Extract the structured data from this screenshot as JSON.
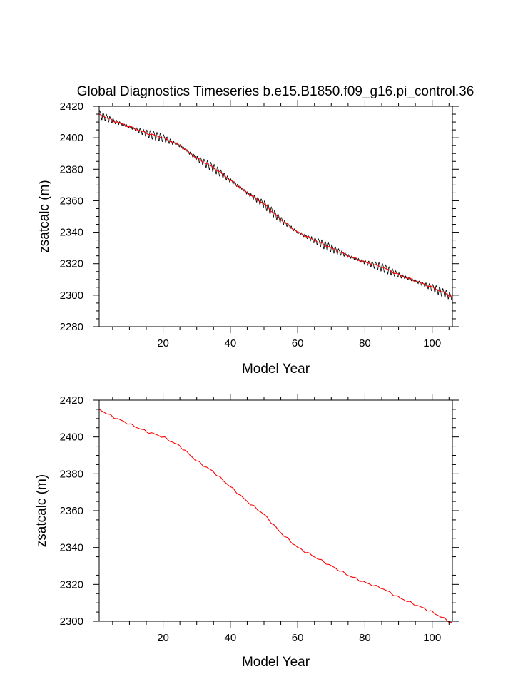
{
  "title": "Global Diagnostics Timeseries b.e15.B1850.f09_g16.pi_control.36",
  "colors": {
    "monthly": "#000000",
    "annual": "#ff0000",
    "frame": "#000000"
  },
  "chart_data": [
    {
      "type": "line",
      "xlabel": "Model Year",
      "ylabel": "zsatcalc (m)",
      "xlim": [
        1,
        106
      ],
      "ylim": [
        2280,
        2420
      ],
      "xticks": [
        20,
        40,
        60,
        80,
        100
      ],
      "yticks": [
        2280,
        2300,
        2320,
        2340,
        2360,
        2380,
        2400,
        2420
      ],
      "grid": false,
      "seasonal_amplitude_m": 2.5,
      "series": [
        {
          "role": "monthly",
          "x": [
            1,
            5,
            10,
            15,
            20,
            25,
            30,
            35,
            40,
            45,
            50,
            55,
            60,
            65,
            70,
            75,
            80,
            85,
            90,
            95,
            100,
            106
          ],
          "values": [
            2415,
            2411,
            2407,
            2403,
            2400,
            2395,
            2387,
            2381,
            2373,
            2365,
            2358,
            2348,
            2340,
            2335,
            2330,
            2325,
            2321,
            2318,
            2313,
            2309,
            2305,
            2299
          ]
        },
        {
          "role": "annual",
          "x": [
            1,
            5,
            10,
            15,
            20,
            25,
            30,
            35,
            40,
            45,
            50,
            55,
            60,
            65,
            70,
            75,
            80,
            85,
            90,
            95,
            100,
            106
          ],
          "values": [
            2415,
            2411,
            2407,
            2403,
            2400,
            2395,
            2387,
            2381,
            2373,
            2365,
            2358,
            2348,
            2340,
            2335,
            2330,
            2325,
            2321,
            2318,
            2313,
            2309,
            2305,
            2299
          ]
        }
      ]
    },
    {
      "type": "line",
      "xlabel": "Model Year",
      "ylabel": "zsatcalc (m)",
      "xlim": [
        1,
        106
      ],
      "ylim": [
        2300,
        2420
      ],
      "xticks": [
        20,
        40,
        60,
        80,
        100
      ],
      "yticks": [
        2300,
        2320,
        2340,
        2360,
        2380,
        2400,
        2420
      ],
      "grid": false,
      "series": [
        {
          "role": "annual",
          "x": [
            1,
            5,
            10,
            15,
            20,
            25,
            30,
            35,
            40,
            45,
            50,
            55,
            60,
            65,
            70,
            75,
            80,
            85,
            90,
            95,
            100,
            106
          ],
          "values": [
            2415,
            2411,
            2407,
            2403,
            2400,
            2395,
            2387,
            2381,
            2373,
            2365,
            2358,
            2348,
            2340,
            2335,
            2330,
            2325,
            2321,
            2318,
            2313,
            2309,
            2305,
            2299
          ]
        }
      ]
    }
  ]
}
